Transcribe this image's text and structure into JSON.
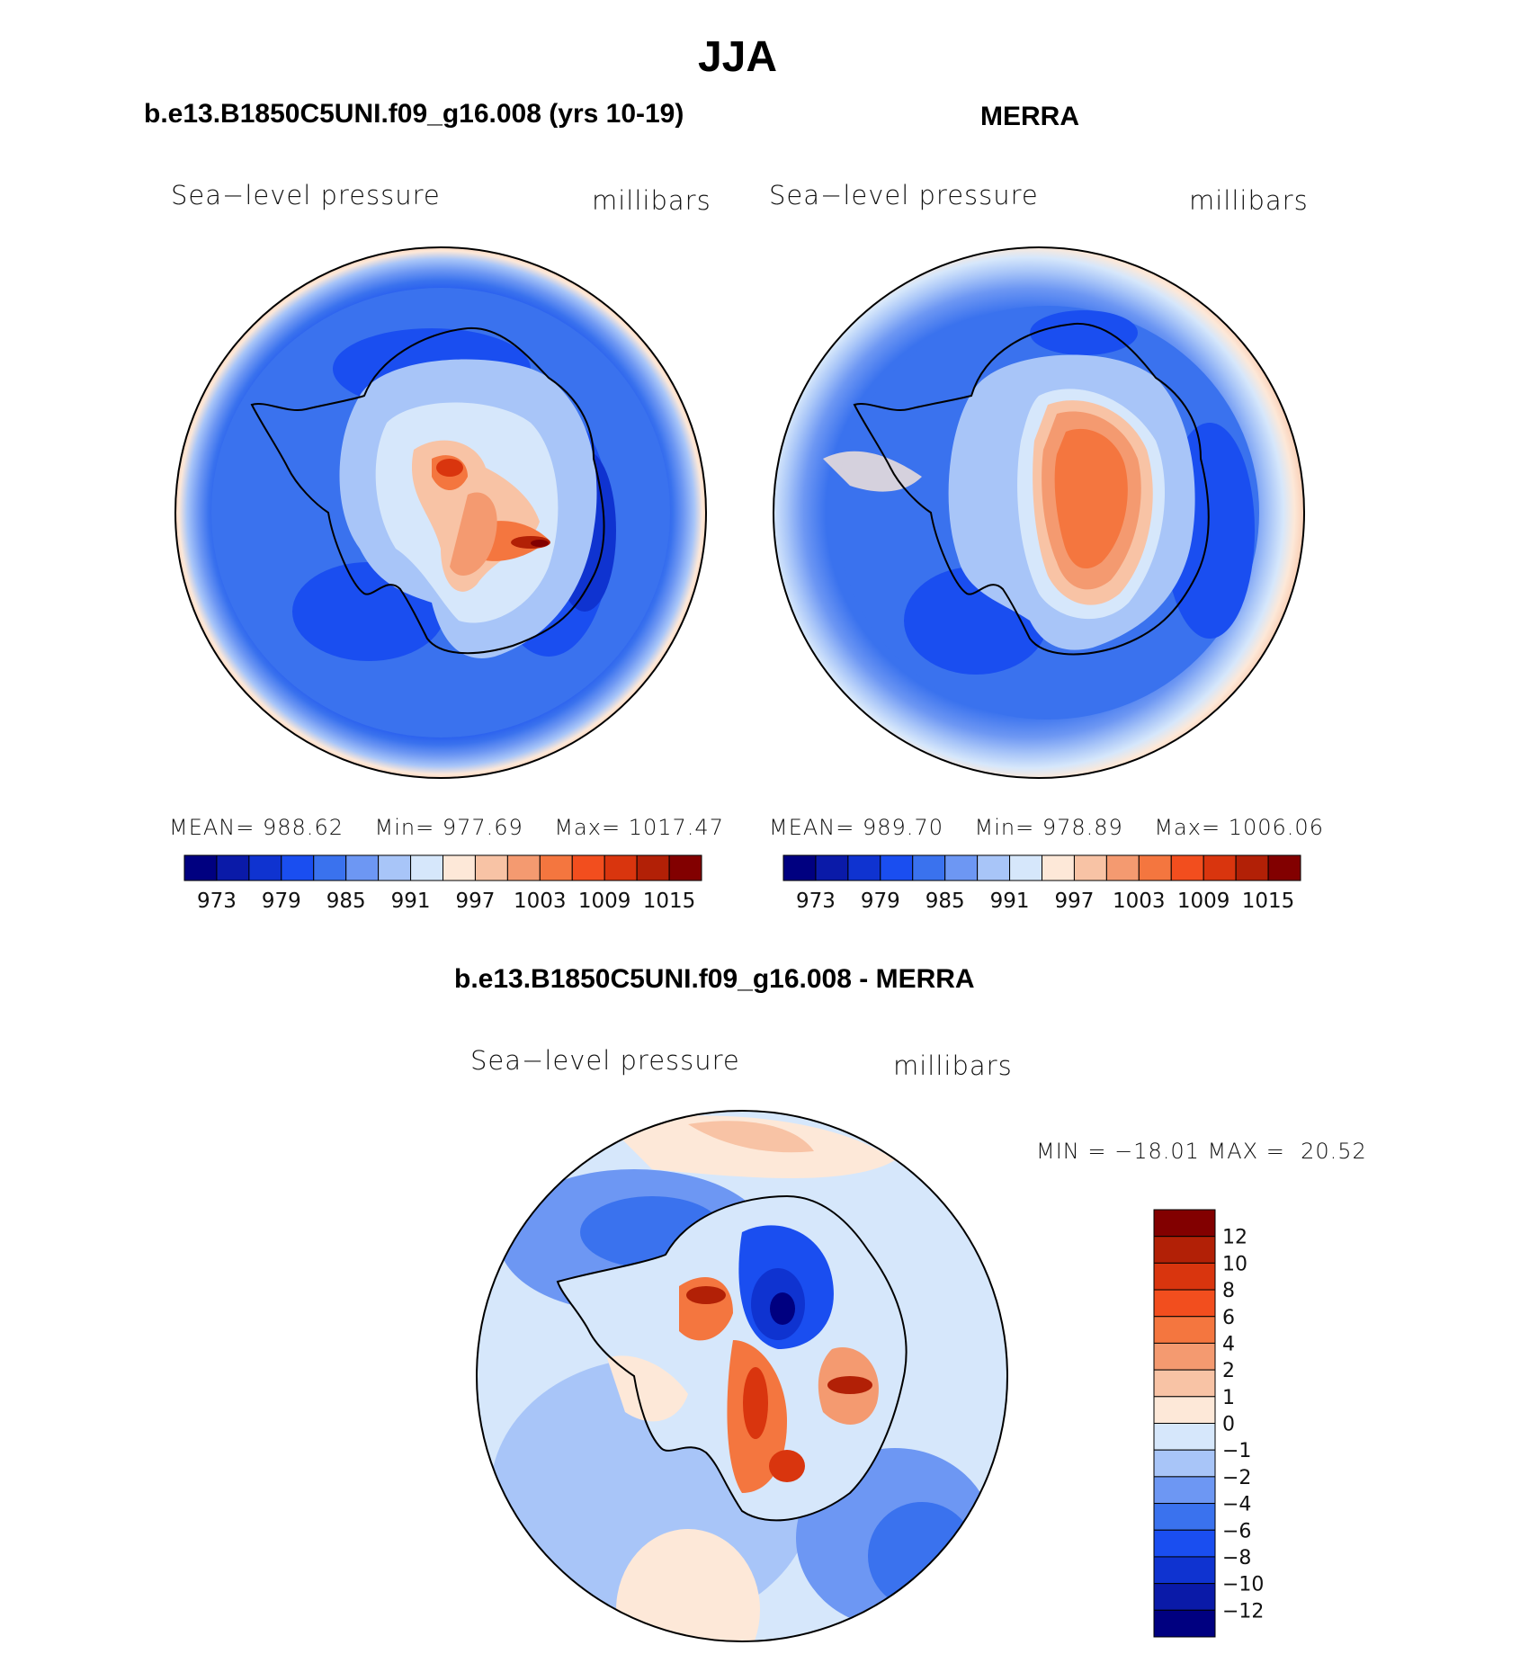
{
  "title": "JJA",
  "panels": [
    {
      "title": "b.e13.B1850C5UNI.f09_g16.008 (yrs 10-19)",
      "variable": "Sea−level pressure",
      "units": "millibars",
      "stats": {
        "mean_label": "MEAN=",
        "mean": "988.62",
        "min_label": "Min=",
        "min": "977.69",
        "max_label": "Max=",
        "max": "1017.47"
      }
    },
    {
      "title": "MERRA",
      "variable": "Sea−level pressure",
      "units": "millibars",
      "stats": {
        "mean_label": "MEAN=",
        "mean": "989.70",
        "min_label": "Min=",
        "min": "978.89",
        "max_label": "Max=",
        "max": "1006.06"
      }
    }
  ],
  "diff_panel": {
    "title": "b.e13.B1850C5UNI.f09_g16.008 - MERRA",
    "variable": "Sea−level pressure",
    "units": "millibars",
    "minmax": "MIN = −18.01 MAX =  20.52"
  },
  "colorbar_main": {
    "tick_labels": [
      "973",
      "979",
      "985",
      "991",
      "997",
      "1003",
      "1009",
      "1015"
    ],
    "colors": [
      "#000080",
      "#0a1aa8",
      "#0f33d0",
      "#1a4ef0",
      "#3a72ee",
      "#6d97f3",
      "#a8c5f8",
      "#d6e7fb",
      "#fde8d8",
      "#f8c3a5",
      "#f49a70",
      "#f4763f",
      "#f24e1e",
      "#d9350e",
      "#b22006",
      "#820000"
    ]
  },
  "colorbar_diff": {
    "tick_labels": [
      "12",
      "10",
      "8",
      "6",
      "4",
      "2",
      "1",
      "0",
      "−1",
      "−2",
      "−4",
      "−6",
      "−8",
      "−10",
      "−12"
    ],
    "colors": [
      "#820000",
      "#b22006",
      "#d9350e",
      "#f24e1e",
      "#f4763f",
      "#f49a70",
      "#f8c3a5",
      "#fde8d8",
      "#d6e7fb",
      "#a8c5f8",
      "#6d97f3",
      "#3a72ee",
      "#1a4ef0",
      "#0f33d0",
      "#0a1aa8",
      "#000080"
    ]
  }
}
